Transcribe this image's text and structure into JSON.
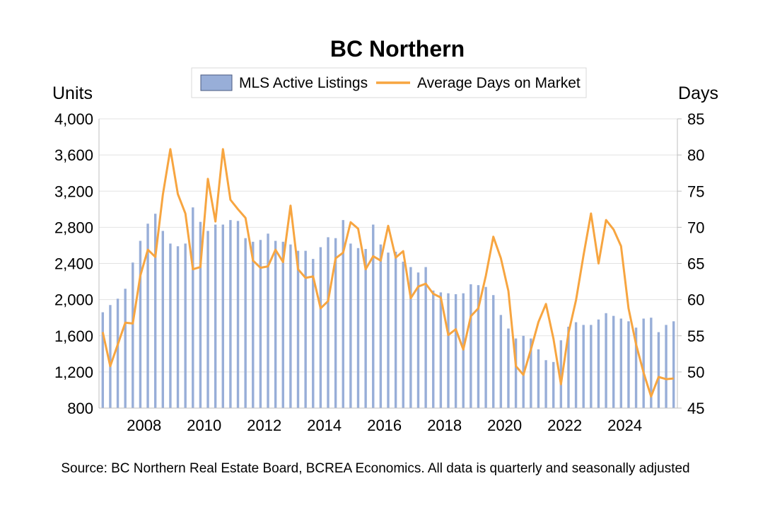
{
  "chart_data": {
    "type": "bar",
    "title": "BC Northern",
    "ylabel": "Units",
    "y2label": "Days",
    "ylim": [
      800,
      4000
    ],
    "y2lim": [
      45,
      85
    ],
    "yticks": [
      "800",
      "1,200",
      "1,600",
      "2,000",
      "2,400",
      "2,800",
      "3,200",
      "3,600",
      "4,000"
    ],
    "y2ticks": [
      "45",
      "50",
      "55",
      "60",
      "65",
      "70",
      "75",
      "80",
      "85"
    ],
    "xticks": [
      "2008",
      "2010",
      "2012",
      "2014",
      "2016",
      "2018",
      "2020",
      "2022",
      "2024"
    ],
    "grid": "horizontal",
    "legend": "top-center",
    "x": [
      "2006-Q3",
      "2006-Q4",
      "2007-Q1",
      "2007-Q2",
      "2007-Q3",
      "2007-Q4",
      "2008-Q1",
      "2008-Q2",
      "2008-Q3",
      "2008-Q4",
      "2009-Q1",
      "2009-Q2",
      "2009-Q3",
      "2009-Q4",
      "2010-Q1",
      "2010-Q2",
      "2010-Q3",
      "2010-Q4",
      "2011-Q1",
      "2011-Q2",
      "2011-Q3",
      "2011-Q4",
      "2012-Q1",
      "2012-Q2",
      "2012-Q3",
      "2012-Q4",
      "2013-Q1",
      "2013-Q2",
      "2013-Q3",
      "2013-Q4",
      "2014-Q1",
      "2014-Q2",
      "2014-Q3",
      "2014-Q4",
      "2015-Q1",
      "2015-Q2",
      "2015-Q3",
      "2015-Q4",
      "2016-Q1",
      "2016-Q2",
      "2016-Q3",
      "2016-Q4",
      "2017-Q1",
      "2017-Q2",
      "2017-Q3",
      "2017-Q4",
      "2018-Q1",
      "2018-Q2",
      "2018-Q3",
      "2018-Q4",
      "2019-Q1",
      "2019-Q2",
      "2019-Q3",
      "2019-Q4",
      "2020-Q1",
      "2020-Q2",
      "2020-Q3",
      "2020-Q4",
      "2021-Q1",
      "2021-Q2",
      "2021-Q3",
      "2021-Q4",
      "2022-Q1",
      "2022-Q2",
      "2022-Q3",
      "2022-Q4",
      "2023-Q1",
      "2023-Q2",
      "2023-Q3",
      "2023-Q4",
      "2024-Q1",
      "2024-Q2",
      "2024-Q3",
      "2024-Q4",
      "2025-Q1",
      "2025-Q2",
      "2025-Q3"
    ],
    "series": [
      {
        "name": "MLS Active Listings",
        "kind": "bar",
        "axis": "left",
        "color": "#98AED8",
        "values": [
          1860,
          1940,
          2010,
          2120,
          2410,
          2650,
          2840,
          2950,
          2760,
          2620,
          2590,
          2620,
          3020,
          2860,
          2760,
          2830,
          2830,
          2880,
          2870,
          2680,
          2640,
          2660,
          2730,
          2650,
          2640,
          2610,
          2540,
          2540,
          2450,
          2580,
          2690,
          2680,
          2880,
          2620,
          2570,
          2560,
          2830,
          2610,
          2520,
          2530,
          2420,
          2360,
          2300,
          2360,
          2100,
          2080,
          2070,
          2060,
          2070,
          2170,
          2160,
          2140,
          2050,
          1830,
          1680,
          1570,
          1600,
          1570,
          1450,
          1330,
          1310,
          1550,
          1700,
          1750,
          1720,
          1720,
          1780,
          1850,
          1820,
          1790,
          1760,
          1690,
          1790,
          1800,
          1640,
          1720,
          1760
        ]
      },
      {
        "name": "Average Days on Market",
        "kind": "line",
        "axis": "right",
        "color": "#F7A540",
        "values": [
          55.5,
          50.8,
          53.8,
          56.8,
          56.7,
          63.3,
          66.9,
          65.9,
          74.5,
          80.8,
          74.6,
          71.9,
          64.2,
          64.5,
          76.7,
          70.8,
          80.8,
          73.8,
          72.5,
          71.3,
          65.4,
          64.4,
          64.6,
          66.9,
          65.2,
          73,
          64.2,
          63,
          63.2,
          58.8,
          59.8,
          65.7,
          66.5,
          70.7,
          69.8,
          64.2,
          66,
          65.4,
          70.2,
          65.8,
          66.7,
          60.2,
          61.8,
          62.2,
          60.8,
          60.3,
          55.1,
          55.9,
          53.1,
          57.7,
          58.8,
          63.3,
          68.7,
          65.7,
          61.2,
          50.8,
          49.6,
          53.1,
          56.9,
          59.4,
          54.6,
          48.3,
          55.4,
          59.9,
          66.1,
          71.9,
          65,
          71,
          69.7,
          67.4,
          58.8,
          53.8,
          49.9,
          46.6,
          49.3,
          49,
          49.1
        ]
      }
    ]
  },
  "footer": {
    "source": "Source: BC Northern Real Estate Board, BCREA Economics. All data is quarterly and seasonally adjusted"
  }
}
